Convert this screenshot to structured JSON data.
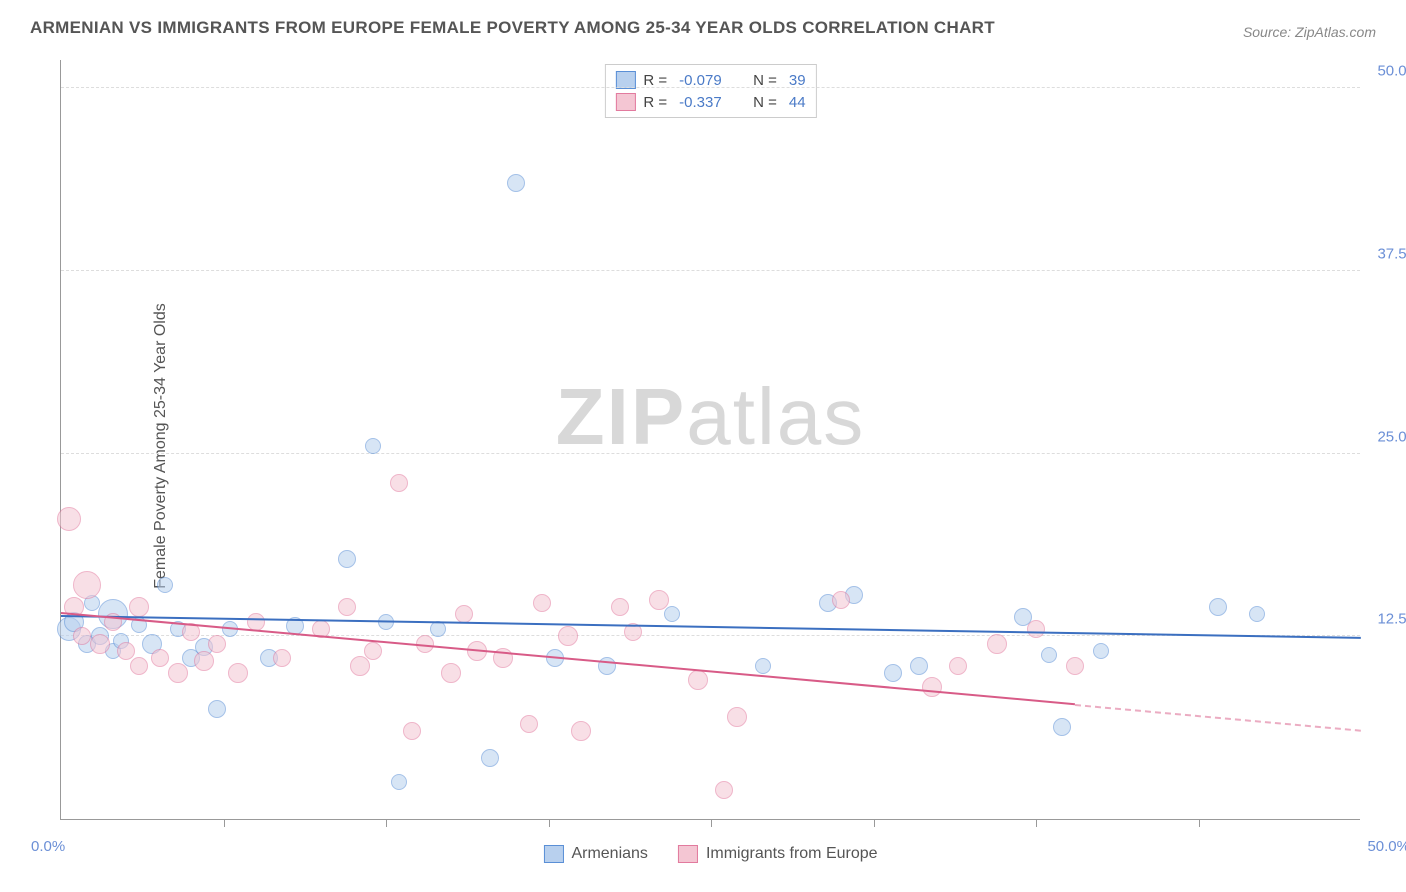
{
  "title": "ARMENIAN VS IMMIGRANTS FROM EUROPE FEMALE POVERTY AMONG 25-34 YEAR OLDS CORRELATION CHART",
  "source": "Source: ZipAtlas.com",
  "ylabel": "Female Poverty Among 25-34 Year Olds",
  "watermark_bold": "ZIP",
  "watermark_rest": "atlas",
  "bottom_legend": [
    {
      "label": "Armenians",
      "fill": "#b8d0ee",
      "stroke": "#5a8fd6"
    },
    {
      "label": "Immigrants from Europe",
      "fill": "#f4c6d3",
      "stroke": "#e27a9e"
    }
  ],
  "correlation_legend": {
    "rows": [
      {
        "fill": "#b8d0ee",
        "stroke": "#5a8fd6",
        "r_label": "R =",
        "r": "-0.079",
        "n_label": "N =",
        "n": "39"
      },
      {
        "fill": "#f4c6d3",
        "stroke": "#e27a9e",
        "r_label": "R =",
        "r": "-0.337",
        "n_label": "N =",
        "n": "44"
      }
    ]
  },
  "chart": {
    "type": "scatter",
    "xlim": [
      0,
      50
    ],
    "ylim": [
      0,
      52
    ],
    "grid_color": "#dddddd",
    "background": "#ffffff",
    "y_ticks": [
      12.5,
      25.0,
      37.5,
      50.0
    ],
    "y_tick_labels": [
      "12.5%",
      "25.0%",
      "37.5%",
      "50.0%"
    ],
    "x_minor_ticks": [
      6.25,
      12.5,
      18.75,
      25.0,
      31.25,
      37.5,
      43.75
    ],
    "x_axis_min_label": "0.0%",
    "x_axis_max_label": "50.0%",
    "series": [
      {
        "name": "Armenians",
        "fill": "#b8d0ee",
        "stroke": "#5a8fd6",
        "opacity": 0.55,
        "trend": {
          "y0": 13.8,
          "y50": 12.3,
          "color": "#3b6fc0",
          "x_solid_end": 50
        },
        "points": [
          {
            "x": 0.3,
            "y": 13.0,
            "r": 12
          },
          {
            "x": 0.5,
            "y": 13.5,
            "r": 10
          },
          {
            "x": 1.0,
            "y": 12.0,
            "r": 9
          },
          {
            "x": 1.2,
            "y": 14.8,
            "r": 8
          },
          {
            "x": 1.5,
            "y": 12.5,
            "r": 9
          },
          {
            "x": 2.0,
            "y": 11.5,
            "r": 8
          },
          {
            "x": 2.0,
            "y": 14.0,
            "r": 15
          },
          {
            "x": 2.3,
            "y": 12.2,
            "r": 8
          },
          {
            "x": 3.0,
            "y": 13.3,
            "r": 8
          },
          {
            "x": 3.5,
            "y": 12.0,
            "r": 10
          },
          {
            "x": 4.0,
            "y": 16.0,
            "r": 8
          },
          {
            "x": 4.5,
            "y": 13.0,
            "r": 8
          },
          {
            "x": 5.0,
            "y": 11.0,
            "r": 9
          },
          {
            "x": 5.5,
            "y": 11.8,
            "r": 9
          },
          {
            "x": 6.0,
            "y": 7.5,
            "r": 9
          },
          {
            "x": 6.5,
            "y": 13.0,
            "r": 8
          },
          {
            "x": 8.0,
            "y": 11.0,
            "r": 9
          },
          {
            "x": 9.0,
            "y": 13.2,
            "r": 9
          },
          {
            "x": 11.0,
            "y": 17.8,
            "r": 9
          },
          {
            "x": 12.0,
            "y": 25.5,
            "r": 8
          },
          {
            "x": 12.5,
            "y": 13.5,
            "r": 8
          },
          {
            "x": 13.0,
            "y": 2.5,
            "r": 8
          },
          {
            "x": 14.5,
            "y": 13.0,
            "r": 8
          },
          {
            "x": 16.5,
            "y": 4.2,
            "r": 9
          },
          {
            "x": 17.5,
            "y": 43.5,
            "r": 9
          },
          {
            "x": 19.0,
            "y": 11.0,
            "r": 9
          },
          {
            "x": 21.0,
            "y": 10.5,
            "r": 9
          },
          {
            "x": 23.5,
            "y": 14.0,
            "r": 8
          },
          {
            "x": 27.0,
            "y": 10.5,
            "r": 8
          },
          {
            "x": 29.5,
            "y": 14.8,
            "r": 9
          },
          {
            "x": 30.5,
            "y": 15.3,
            "r": 9
          },
          {
            "x": 32.0,
            "y": 10.0,
            "r": 9
          },
          {
            "x": 33.0,
            "y": 10.5,
            "r": 9
          },
          {
            "x": 37.0,
            "y": 13.8,
            "r": 9
          },
          {
            "x": 38.0,
            "y": 11.2,
            "r": 8
          },
          {
            "x": 38.5,
            "y": 6.3,
            "r": 9
          },
          {
            "x": 40.0,
            "y": 11.5,
            "r": 8
          },
          {
            "x": 44.5,
            "y": 14.5,
            "r": 9
          },
          {
            "x": 46.0,
            "y": 14.0,
            "r": 8
          }
        ]
      },
      {
        "name": "Immigrants from Europe",
        "fill": "#f4c6d3",
        "stroke": "#e27a9e",
        "opacity": 0.55,
        "trend": {
          "y0": 14.0,
          "y50": 6.0,
          "color": "#d85b87",
          "x_solid_end": 39
        },
        "points": [
          {
            "x": 0.3,
            "y": 20.5,
            "r": 12
          },
          {
            "x": 0.5,
            "y": 14.5,
            "r": 10
          },
          {
            "x": 0.8,
            "y": 12.5,
            "r": 9
          },
          {
            "x": 1.0,
            "y": 16.0,
            "r": 14
          },
          {
            "x": 1.5,
            "y": 12.0,
            "r": 10
          },
          {
            "x": 2.0,
            "y": 13.5,
            "r": 9
          },
          {
            "x": 2.5,
            "y": 11.5,
            "r": 9
          },
          {
            "x": 3.0,
            "y": 14.5,
            "r": 10
          },
          {
            "x": 3.0,
            "y": 10.5,
            "r": 9
          },
          {
            "x": 3.8,
            "y": 11.0,
            "r": 9
          },
          {
            "x": 4.5,
            "y": 10.0,
            "r": 10
          },
          {
            "x": 5.0,
            "y": 12.8,
            "r": 9
          },
          {
            "x": 5.5,
            "y": 10.8,
            "r": 10
          },
          {
            "x": 6.0,
            "y": 12.0,
            "r": 9
          },
          {
            "x": 6.8,
            "y": 10.0,
            "r": 10
          },
          {
            "x": 7.5,
            "y": 13.5,
            "r": 9
          },
          {
            "x": 8.5,
            "y": 11.0,
            "r": 9
          },
          {
            "x": 10.0,
            "y": 13.0,
            "r": 9
          },
          {
            "x": 11.0,
            "y": 14.5,
            "r": 9
          },
          {
            "x": 11.5,
            "y": 10.5,
            "r": 10
          },
          {
            "x": 12.0,
            "y": 11.5,
            "r": 9
          },
          {
            "x": 13.0,
            "y": 23.0,
            "r": 9
          },
          {
            "x": 13.5,
            "y": 6.0,
            "r": 9
          },
          {
            "x": 14.0,
            "y": 12.0,
            "r": 9
          },
          {
            "x": 15.0,
            "y": 10.0,
            "r": 10
          },
          {
            "x": 15.5,
            "y": 14.0,
            "r": 9
          },
          {
            "x": 16.0,
            "y": 11.5,
            "r": 10
          },
          {
            "x": 17.0,
            "y": 11.0,
            "r": 10
          },
          {
            "x": 18.0,
            "y": 6.5,
            "r": 9
          },
          {
            "x": 18.5,
            "y": 14.8,
            "r": 9
          },
          {
            "x": 19.5,
            "y": 12.5,
            "r": 10
          },
          {
            "x": 20.0,
            "y": 6.0,
            "r": 10
          },
          {
            "x": 21.5,
            "y": 14.5,
            "r": 9
          },
          {
            "x": 22.0,
            "y": 12.8,
            "r": 9
          },
          {
            "x": 23.0,
            "y": 15.0,
            "r": 10
          },
          {
            "x": 24.5,
            "y": 9.5,
            "r": 10
          },
          {
            "x": 25.5,
            "y": 2.0,
            "r": 9
          },
          {
            "x": 26.0,
            "y": 7.0,
            "r": 10
          },
          {
            "x": 30.0,
            "y": 15.0,
            "r": 9
          },
          {
            "x": 33.5,
            "y": 9.0,
            "r": 10
          },
          {
            "x": 34.5,
            "y": 10.5,
            "r": 9
          },
          {
            "x": 36.0,
            "y": 12.0,
            "r": 10
          },
          {
            "x": 37.5,
            "y": 13.0,
            "r": 9
          },
          {
            "x": 39.0,
            "y": 10.5,
            "r": 9
          }
        ]
      }
    ]
  }
}
